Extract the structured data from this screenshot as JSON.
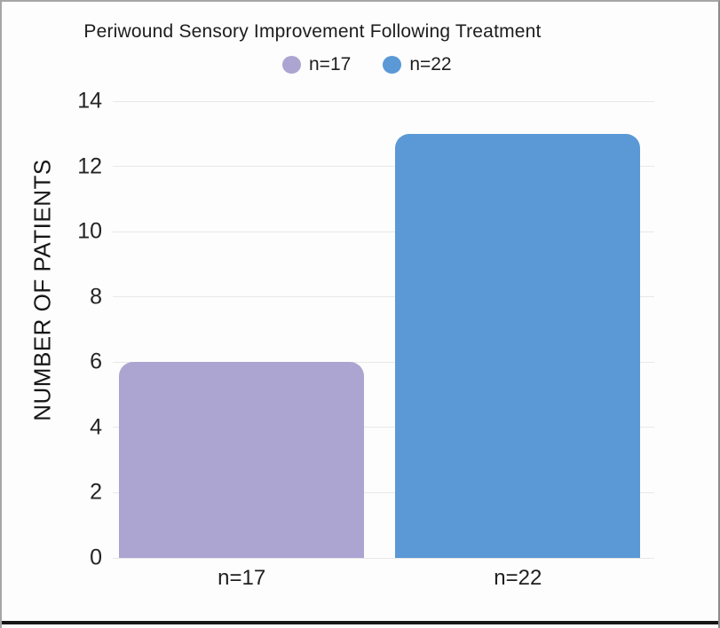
{
  "window": {
    "background": "#fdfdfd",
    "frame_border_color": "#a6a6a6",
    "bottom_bar_color": "#161616"
  },
  "chart_data": {
    "type": "bar",
    "title": "Periwound Sensory Improvement Following Treatment",
    "xlabel": "",
    "ylabel": "NUMBER OF PATIENTS",
    "categories": [
      "n=17",
      "n=22"
    ],
    "series": [
      {
        "name": "n=17",
        "value": 6,
        "color": "#aca5d1"
      },
      {
        "name": "n=22",
        "value": 13,
        "color": "#5a99d6"
      }
    ],
    "legend": [
      {
        "label": "n=17",
        "color": "#aca5d1"
      },
      {
        "label": "n=22",
        "color": "#5a99d6"
      }
    ],
    "legend_position": "top",
    "yticks": [
      0,
      2,
      4,
      6,
      8,
      10,
      12,
      14
    ],
    "ylim": [
      0,
      14
    ],
    "grid": "horizontal",
    "gridline_color": "#e8e8e8",
    "text_color": "#1d1d1d"
  }
}
